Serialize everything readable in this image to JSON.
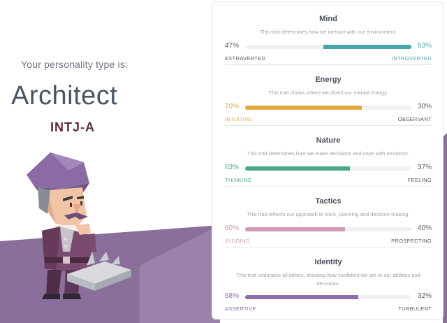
{
  "intro": {
    "label": "Your personality type is:",
    "type_name": "Architect",
    "type_code": "INTJ-A"
  },
  "colors": {
    "mind": "#4aa5a8",
    "energy": "#e0a93b",
    "nature": "#4aa888",
    "tactics": "#d29bb5",
    "identity": "#8a6fa8",
    "neutral_text": "#555a64",
    "background_shape": "#8a6f9a"
  },
  "traits": [
    {
      "key": "mind",
      "title": "Mind",
      "description": "This trait determines how we interact with our environment.",
      "left_percent": "47%",
      "right_percent": "53%",
      "left_label": "EXTRAVERTED",
      "right_label": "INTROVERTED",
      "dominant": "right",
      "dominant_value": 0.53
    },
    {
      "key": "energy",
      "title": "Energy",
      "description": "This trait shows where we direct our mental energy.",
      "left_percent": "70%",
      "right_percent": "30%",
      "left_label": "INTUITIVE",
      "right_label": "OBSERVANT",
      "dominant": "left",
      "dominant_value": 0.7
    },
    {
      "key": "nature",
      "title": "Nature",
      "description": "This trait determines how we make decisions and cope with emotions.",
      "left_percent": "63%",
      "right_percent": "37%",
      "left_label": "THINKING",
      "right_label": "FEELING",
      "dominant": "left",
      "dominant_value": 0.63
    },
    {
      "key": "tactics",
      "title": "Tactics",
      "description": "This trait reflects our approach to work, planning and decision-making.",
      "left_percent": "60%",
      "right_percent": "40%",
      "left_label": "JUDGING",
      "right_label": "PROSPECTING",
      "dominant": "left",
      "dominant_value": 0.6
    },
    {
      "key": "identity",
      "title": "Identity",
      "description": "This trait underpins all others, showing how confident we are in our abilities and decisions.",
      "left_percent": "68%",
      "right_percent": "32%",
      "left_label": "ASSERTIVE",
      "right_label": "TURBULENT",
      "dominant": "left",
      "dominant_value": 0.68
    }
  ]
}
